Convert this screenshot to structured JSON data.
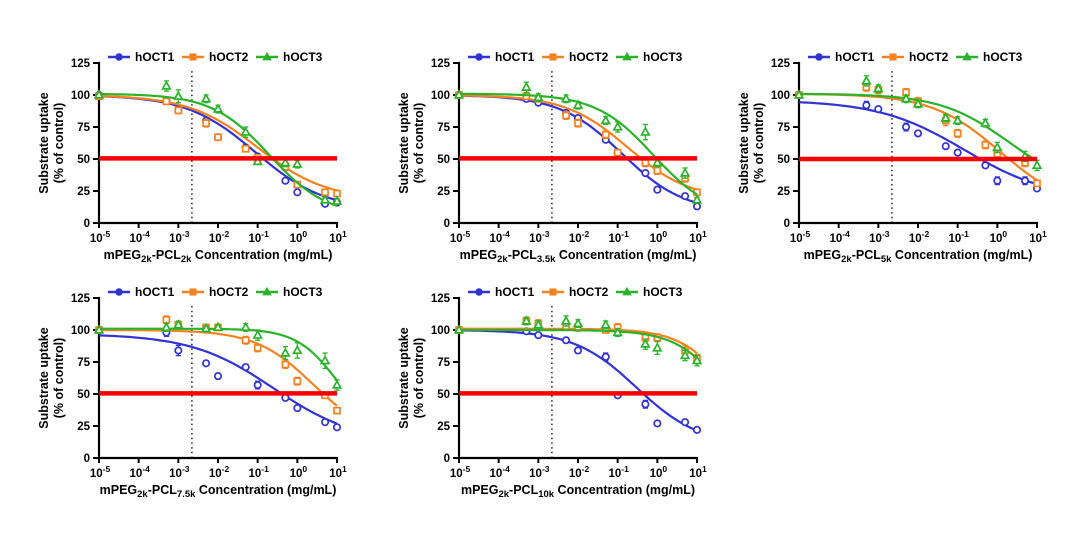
{
  "figure": {
    "background": "#FFFFFF",
    "ylabel": [
      "Substrate uptake",
      "(% of control)"
    ],
    "legend_labels": [
      "hOCT1",
      "hOCT2",
      "hOCT3"
    ],
    "colors": {
      "hOCT1": "#3133D2",
      "hOCT2": "#F5821F",
      "hOCT3": "#2BB22B",
      "reference": "#F50000",
      "axis": "#000000",
      "dotted": "#000000"
    }
  },
  "chart_data": [
    {
      "id": "pcl2k",
      "type": "scatter",
      "xlabel_parts": {
        "pre": "mPEG",
        "sub1": "2k",
        "mid": "-PCL",
        "sub2": "2k",
        "post": " Concentration (mg/mL)"
      },
      "x_tick_exponents": [
        -5,
        -4,
        -3,
        -2,
        -1,
        0,
        1
      ],
      "yticks": [
        0,
        25,
        50,
        75,
        100,
        125
      ],
      "ylim": [
        0,
        125
      ],
      "reference_line_y": 50.5,
      "dotted_line_x": 0.0022,
      "x": [
        1e-05,
        0.0005,
        0.001,
        0.005,
        0.01,
        0.05,
        0.1,
        0.5,
        1,
        5,
        10
      ],
      "series": [
        {
          "name": "hOCT1",
          "marker": "circle",
          "values": [
            100,
            96,
            88,
            80,
            67,
            59,
            52,
            33,
            24,
            15,
            16
          ],
          "err": [
            0,
            2,
            2,
            2,
            2,
            2,
            2,
            2,
            2,
            2,
            2
          ],
          "fit": {
            "bottom": 10,
            "top": 100,
            "ic50": 0.09,
            "hill": 0.5
          }
        },
        {
          "name": "hOCT2",
          "marker": "square",
          "values": [
            99,
            95,
            88,
            78,
            67,
            58,
            51,
            44,
            30,
            24,
            23
          ],
          "err": [
            0,
            2,
            2,
            3,
            2,
            2,
            2,
            3,
            2,
            2,
            2
          ],
          "fit": {
            "bottom": 18,
            "top": 100,
            "ic50": 0.1,
            "hill": 0.5
          }
        },
        {
          "name": "hOCT3",
          "marker": "triangle",
          "values": [
            100,
            107,
            99,
            97,
            89,
            71,
            48,
            47,
            46,
            18,
            17
          ],
          "err": [
            0,
            4,
            5,
            3,
            3,
            4,
            2,
            3,
            3,
            2,
            2
          ],
          "fit": {
            "bottom": 5,
            "top": 101,
            "ic50": 0.2,
            "hill": 0.6
          }
        }
      ]
    },
    {
      "id": "pcl3.5k",
      "type": "scatter",
      "xlabel_parts": {
        "pre": "mPEG",
        "sub1": "2k",
        "mid": "-PCL",
        "sub2": "3.5k",
        "post": " Concentration (mg/mL)"
      },
      "x_tick_exponents": [
        -5,
        -4,
        -3,
        -2,
        -1,
        0,
        1
      ],
      "yticks": [
        0,
        25,
        50,
        75,
        100,
        125
      ],
      "ylim": [
        0,
        125
      ],
      "reference_line_y": 50.5,
      "dotted_line_x": 0.0022,
      "x": [
        1e-05,
        0.0005,
        0.001,
        0.005,
        0.01,
        0.05,
        0.1,
        0.5,
        1,
        5,
        10
      ],
      "series": [
        {
          "name": "hOCT1",
          "marker": "circle",
          "values": [
            100,
            97,
            94,
            86,
            82,
            65,
            55,
            39,
            26,
            21,
            13
          ],
          "err": [
            0,
            2,
            2,
            2,
            2,
            2,
            2,
            2,
            2,
            2,
            2
          ],
          "fit": {
            "bottom": 8,
            "top": 100,
            "ic50": 0.13,
            "hill": 0.55
          }
        },
        {
          "name": "hOCT2",
          "marker": "square",
          "values": [
            100,
            99,
            97,
            84,
            78,
            69,
            55,
            47,
            41,
            35,
            24
          ],
          "err": [
            0,
            2,
            2,
            3,
            3,
            3,
            2,
            3,
            3,
            3,
            2
          ],
          "fit": {
            "bottom": 18,
            "top": 100,
            "ic50": 0.18,
            "hill": 0.55
          }
        },
        {
          "name": "hOCT3",
          "marker": "triangle",
          "values": [
            100,
            106,
            98,
            97,
            92,
            80,
            75,
            71,
            47,
            39,
            18
          ],
          "err": [
            0,
            4,
            3,
            3,
            3,
            3,
            4,
            6,
            3,
            4,
            2
          ],
          "fit": {
            "bottom": 5,
            "top": 101,
            "ic50": 0.8,
            "hill": 0.6
          }
        }
      ]
    },
    {
      "id": "pcl5k",
      "type": "scatter",
      "xlabel_parts": {
        "pre": "mPEG",
        "sub1": "2k",
        "mid": "-PCL",
        "sub2": "5k",
        "post": " Concentration (mg/mL)"
      },
      "x_tick_exponents": [
        -5,
        -4,
        -3,
        -2,
        -1,
        0,
        1
      ],
      "yticks": [
        0,
        25,
        50,
        75,
        100,
        125
      ],
      "ylim": [
        0,
        125
      ],
      "reference_line_y": 50,
      "dotted_line_x": 0.0022,
      "x": [
        1e-05,
        0.0005,
        0.001,
        0.005,
        0.01,
        0.05,
        0.1,
        0.5,
        1,
        5,
        10
      ],
      "series": [
        {
          "name": "hOCT1",
          "marker": "circle",
          "values": [
            100,
            92,
            89,
            75,
            70,
            60,
            55,
            45,
            33,
            33,
            27
          ],
          "err": [
            0,
            3,
            2,
            3,
            2,
            2,
            2,
            2,
            3,
            3,
            2
          ],
          "fit": {
            "bottom": 18,
            "top": 96,
            "ic50": 0.15,
            "hill": 0.4
          }
        },
        {
          "name": "hOCT2",
          "marker": "square",
          "values": [
            100,
            106,
            104,
            102,
            95,
            80,
            70,
            61,
            54,
            47,
            31
          ],
          "err": [
            0,
            3,
            3,
            3,
            3,
            4,
            3,
            3,
            3,
            3,
            2
          ],
          "fit": {
            "bottom": 10,
            "top": 101,
            "ic50": 1.2,
            "hill": 0.5
          }
        },
        {
          "name": "hOCT3",
          "marker": "triangle",
          "values": [
            100,
            111,
            105,
            97,
            93,
            82,
            80,
            78,
            59,
            52,
            45
          ],
          "err": [
            0,
            4,
            3,
            3,
            3,
            3,
            3,
            3,
            4,
            4,
            4
          ],
          "fit": {
            "bottom": 25,
            "top": 101,
            "ic50": 2.0,
            "hill": 0.5
          }
        }
      ]
    },
    {
      "id": "pcl7.5k",
      "type": "scatter",
      "xlabel_parts": {
        "pre": "mPEG",
        "sub1": "2k",
        "mid": "-PCL",
        "sub2": "7.5k",
        "post": " Concentration (mg/mL)"
      },
      "x_tick_exponents": [
        -5,
        -4,
        -3,
        -2,
        -1,
        0,
        1
      ],
      "yticks": [
        0,
        25,
        50,
        75,
        100,
        125
      ],
      "ylim": [
        0,
        125
      ],
      "reference_line_y": 50.5,
      "dotted_line_x": 0.0022,
      "x": [
        1e-05,
        0.0005,
        0.001,
        0.005,
        0.01,
        0.05,
        0.1,
        0.5,
        1,
        5,
        10
      ],
      "series": [
        {
          "name": "hOCT1",
          "marker": "circle",
          "values": [
            100,
            98,
            84,
            74,
            64,
            71,
            57,
            47,
            39,
            28,
            24
          ],
          "err": [
            0,
            3,
            4,
            2,
            2,
            2,
            3,
            2,
            2,
            2,
            2
          ],
          "fit": {
            "bottom": 12,
            "top": 97,
            "ic50": 0.25,
            "hill": 0.42
          }
        },
        {
          "name": "hOCT2",
          "marker": "square",
          "values": [
            100,
            108,
            104,
            102,
            102,
            92,
            86,
            73,
            60,
            49,
            37
          ],
          "err": [
            0,
            3,
            2,
            2,
            2,
            3,
            3,
            3,
            3,
            2,
            2
          ],
          "fit": {
            "bottom": 15,
            "top": 100,
            "ic50": 2.5,
            "hill": 0.6
          }
        },
        {
          "name": "hOCT3",
          "marker": "triangle",
          "values": [
            100,
            102,
            104,
            101,
            102,
            102,
            96,
            82,
            84,
            76,
            57
          ],
          "err": [
            0,
            3,
            3,
            2,
            2,
            3,
            4,
            5,
            6,
            6,
            4
          ],
          "fit": {
            "bottom": 20,
            "top": 101,
            "ic50": 10,
            "hill": 0.85
          }
        }
      ]
    },
    {
      "id": "pcl10k",
      "type": "scatter",
      "xlabel_parts": {
        "pre": "mPEG",
        "sub1": "2k",
        "mid": "-PCL",
        "sub2": "10k",
        "post": " Concentration (mg/mL)"
      },
      "x_tick_exponents": [
        -5,
        -4,
        -3,
        -2,
        -1,
        0,
        1
      ],
      "yticks": [
        0,
        25,
        50,
        75,
        100,
        125
      ],
      "ylim": [
        0,
        125
      ],
      "reference_line_y": 50.5,
      "dotted_line_x": 0.0022,
      "x": [
        1e-05,
        0.0005,
        0.001,
        0.005,
        0.01,
        0.05,
        0.1,
        0.5,
        1,
        5,
        10
      ],
      "series": [
        {
          "name": "hOCT1",
          "marker": "circle",
          "values": [
            100,
            99,
            96,
            92,
            84,
            79,
            49,
            42,
            27,
            28,
            22
          ],
          "err": [
            0,
            2,
            2,
            2,
            2,
            3,
            2,
            3,
            2,
            2,
            2
          ],
          "fit": {
            "bottom": 10,
            "top": 100,
            "ic50": 0.3,
            "hill": 0.55
          }
        },
        {
          "name": "hOCT2",
          "marker": "square",
          "values": [
            100,
            107,
            105,
            103,
            102,
            100,
            102,
            94,
            94,
            84,
            78
          ],
          "err": [
            0,
            3,
            3,
            3,
            3,
            2,
            3,
            3,
            3,
            4,
            3
          ],
          "fit": {
            "bottom": 0,
            "top": 101,
            "ic50": 80,
            "hill": 0.7
          }
        },
        {
          "name": "hOCT3",
          "marker": "triangle",
          "values": [
            100,
            107,
            104,
            107,
            105,
            104,
            98,
            89,
            86,
            80,
            76
          ],
          "err": [
            0,
            3,
            3,
            4,
            3,
            3,
            3,
            4,
            5,
            4,
            4
          ],
          "fit": {
            "bottom": 0,
            "top": 100,
            "ic50": 60,
            "hill": 0.7
          }
        }
      ]
    }
  ]
}
